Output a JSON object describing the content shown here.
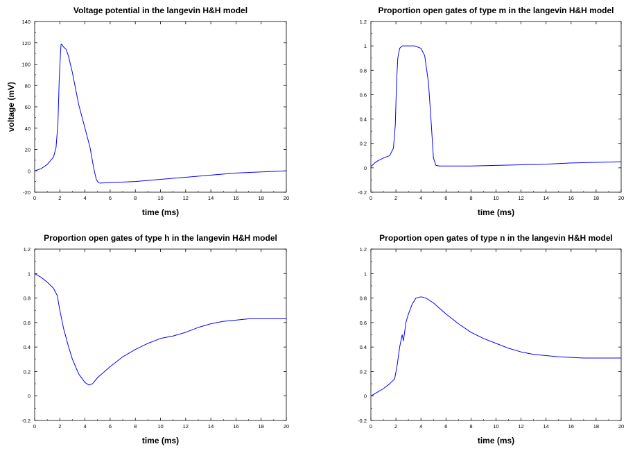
{
  "colors": {
    "line": "#0000ff",
    "axes": "#000000",
    "background": "#ffffff"
  },
  "chart_data": [
    {
      "type": "line",
      "title": "Voltage potential in the langevin H&H model",
      "xlabel": "time (ms)",
      "ylabel": "voltage (mV)",
      "xlim": [
        0,
        20
      ],
      "ylim": [
        -20,
        140
      ],
      "xticks": [
        "0",
        "2",
        "4",
        "6",
        "8",
        "10",
        "12",
        "14",
        "16",
        "18",
        "20"
      ],
      "yticks": [
        "-20",
        "0",
        "20",
        "40",
        "60",
        "80",
        "100",
        "120",
        "140"
      ],
      "grid": false,
      "series": [
        {
          "x": [
            0,
            0.5,
            1.0,
            1.5,
            1.7,
            1.85,
            1.95,
            2.05,
            2.1,
            2.2,
            2.3,
            2.5,
            2.7,
            3.0,
            3.5,
            4.0,
            4.4,
            4.7,
            4.9,
            5.05,
            5.2,
            6,
            8,
            10,
            12,
            14,
            16,
            18,
            20
          ],
          "y": [
            0,
            2,
            6,
            13,
            22,
            45,
            85,
            110,
            119,
            118,
            116,
            114,
            107,
            92,
            62,
            40,
            22,
            2,
            -8,
            -11,
            -11.5,
            -11,
            -10,
            -8,
            -6,
            -4,
            -2,
            -1,
            0
          ]
        }
      ]
    },
    {
      "type": "line",
      "title": "Proportion open gates of type m in the langevin H&H model",
      "xlabel": "time (ms)",
      "ylabel": "",
      "xlim": [
        0,
        20
      ],
      "ylim": [
        -0.2,
        1.2
      ],
      "xticks": [
        "0",
        "2",
        "4",
        "6",
        "8",
        "10",
        "12",
        "14",
        "16",
        "18",
        "20"
      ],
      "yticks": [
        "-0.2",
        "0",
        "0.2",
        "0.4",
        "0.6",
        "0.8",
        "1",
        "1.2"
      ],
      "grid": false,
      "series": [
        {
          "x": [
            0,
            0.3,
            0.6,
            1.0,
            1.5,
            1.8,
            1.95,
            2.05,
            2.15,
            2.3,
            2.5,
            3.0,
            3.5,
            4.0,
            4.3,
            4.6,
            4.8,
            5.0,
            5.2,
            5.5,
            6,
            8,
            10,
            12,
            14,
            16,
            18,
            20
          ],
          "y": [
            0.01,
            0.04,
            0.06,
            0.08,
            0.1,
            0.16,
            0.35,
            0.7,
            0.9,
            0.98,
            1.0,
            1.0,
            1.0,
            0.98,
            0.92,
            0.7,
            0.4,
            0.08,
            0.02,
            0.015,
            0.015,
            0.015,
            0.02,
            0.025,
            0.03,
            0.04,
            0.045,
            0.05
          ]
        }
      ]
    },
    {
      "type": "line",
      "title": "Proportion open gates of type h in the langevin H&H model",
      "xlabel": "time (ms)",
      "ylabel": "",
      "xlim": [
        0,
        20
      ],
      "ylim": [
        -0.2,
        1.2
      ],
      "xticks": [
        "0",
        "2",
        "4",
        "6",
        "8",
        "10",
        "12",
        "14",
        "16",
        "18",
        "20"
      ],
      "yticks": [
        "-0.2",
        "0",
        "0.2",
        "0.4",
        "0.6",
        "0.8",
        "1",
        "1.2"
      ],
      "grid": false,
      "series": [
        {
          "x": [
            0,
            0.5,
            1.0,
            1.5,
            1.8,
            2.0,
            2.3,
            2.7,
            3.0,
            3.5,
            4.0,
            4.3,
            4.6,
            5.0,
            6,
            7,
            8,
            9,
            10,
            11,
            12,
            13,
            14,
            15,
            16,
            17,
            18,
            20
          ],
          "y": [
            1.0,
            0.97,
            0.93,
            0.88,
            0.82,
            0.7,
            0.55,
            0.4,
            0.3,
            0.18,
            0.11,
            0.09,
            0.1,
            0.15,
            0.24,
            0.32,
            0.38,
            0.43,
            0.47,
            0.49,
            0.52,
            0.56,
            0.59,
            0.61,
            0.62,
            0.63,
            0.63,
            0.63
          ]
        }
      ]
    },
    {
      "type": "line",
      "title": "Proportion open gates of type n in the langevin H&H model",
      "xlabel": "time (ms)",
      "ylabel": "",
      "xlim": [
        0,
        20
      ],
      "ylim": [
        -0.2,
        1.2
      ],
      "xticks": [
        "0",
        "2",
        "4",
        "6",
        "8",
        "10",
        "12",
        "14",
        "16",
        "18",
        "20"
      ],
      "yticks": [
        "-0.2",
        "0",
        "0.2",
        "0.4",
        "0.6",
        "0.8",
        "1",
        "1.2"
      ],
      "grid": false,
      "series": [
        {
          "x": [
            0,
            0.5,
            1.0,
            1.5,
            1.9,
            2.1,
            2.3,
            2.5,
            2.6,
            2.8,
            3.0,
            3.3,
            3.6,
            4.0,
            4.4,
            5,
            6,
            7,
            8,
            9,
            10,
            11,
            12,
            13,
            14,
            15,
            16,
            17,
            18,
            19,
            20
          ],
          "y": [
            0.0,
            0.03,
            0.06,
            0.1,
            0.14,
            0.25,
            0.4,
            0.5,
            0.45,
            0.6,
            0.67,
            0.75,
            0.8,
            0.81,
            0.8,
            0.76,
            0.67,
            0.59,
            0.52,
            0.47,
            0.43,
            0.39,
            0.36,
            0.34,
            0.33,
            0.32,
            0.315,
            0.31,
            0.31,
            0.31,
            0.31
          ]
        }
      ]
    }
  ]
}
